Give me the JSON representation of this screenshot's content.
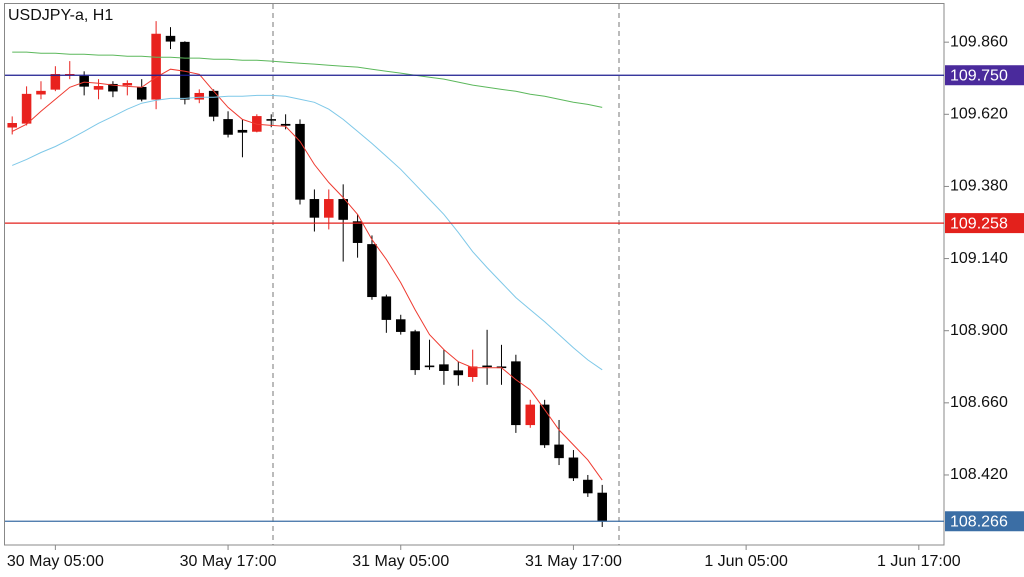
{
  "chart_data": {
    "type": "candlestick",
    "title": "USDJPY-a, H1",
    "x": [
      "30 May 02:00",
      "30 May 03:00",
      "30 May 04:00",
      "30 May 05:00",
      "30 May 06:00",
      "30 May 07:00",
      "30 May 08:00",
      "30 May 09:00",
      "30 May 10:00",
      "30 May 11:00",
      "30 May 12:00",
      "30 May 13:00",
      "30 May 14:00",
      "30 May 15:00",
      "30 May 16:00",
      "30 May 17:00",
      "30 May 18:00",
      "30 May 19:00",
      "30 May 20:00",
      "30 May 21:00",
      "30 May 22:00",
      "30 May 23:00",
      "31 May 00:00",
      "31 May 01:00",
      "31 May 02:00",
      "31 May 03:00",
      "31 May 04:00",
      "31 May 05:00",
      "31 May 06:00",
      "31 May 07:00",
      "31 May 08:00",
      "31 May 09:00",
      "31 May 10:00",
      "31 May 11:00",
      "31 May 12:00",
      "31 May 13:00",
      "31 May 14:00",
      "31 May 15:00",
      "31 May 16:00",
      "31 May 17:00",
      "31 May 18:00",
      "31 May 19:00"
    ],
    "open": [
      109.577,
      109.59,
      109.687,
      109.703,
      109.75,
      109.747,
      109.703,
      109.72,
      109.717,
      109.71,
      109.67,
      109.88,
      109.86,
      109.67,
      109.697,
      109.603,
      109.567,
      109.563,
      109.603,
      109.587,
      109.587,
      109.337,
      109.277,
      109.337,
      109.263,
      109.187,
      109.013,
      108.937,
      108.897,
      108.783,
      108.787,
      108.767,
      108.747,
      108.783,
      108.78,
      108.797,
      108.587,
      108.653,
      108.52,
      108.477,
      108.403,
      108.36
    ],
    "high": [
      109.613,
      109.713,
      109.73,
      109.78,
      109.797,
      109.763,
      109.737,
      109.73,
      109.733,
      109.737,
      109.93,
      109.91,
      109.863,
      109.703,
      109.703,
      109.63,
      109.603,
      109.62,
      109.62,
      109.62,
      109.603,
      109.37,
      109.37,
      109.387,
      109.287,
      109.217,
      109.02,
      108.953,
      108.903,
      108.87,
      108.837,
      108.797,
      108.837,
      108.903,
      108.853,
      108.82,
      108.67,
      108.67,
      108.603,
      108.503,
      108.42,
      108.387
    ],
    "low": [
      109.553,
      109.583,
      109.67,
      109.697,
      109.737,
      109.683,
      109.67,
      109.677,
      109.683,
      109.663,
      109.637,
      109.837,
      109.653,
      109.657,
      109.597,
      109.543,
      109.477,
      109.56,
      109.577,
      109.57,
      109.32,
      109.23,
      109.237,
      109.13,
      109.143,
      109.003,
      108.893,
      108.887,
      108.753,
      108.77,
      108.72,
      108.717,
      108.73,
      108.72,
      108.72,
      108.56,
      108.577,
      108.51,
      108.453,
      108.4,
      108.347,
      108.247
    ],
    "close": [
      109.59,
      109.687,
      109.697,
      109.753,
      109.753,
      109.713,
      109.713,
      109.697,
      109.723,
      109.67,
      109.887,
      109.863,
      109.67,
      109.69,
      109.613,
      109.553,
      109.56,
      109.613,
      109.6,
      109.583,
      109.337,
      109.277,
      109.337,
      109.27,
      109.193,
      109.013,
      108.937,
      108.897,
      108.77,
      108.78,
      108.767,
      108.753,
      108.78,
      108.78,
      108.777,
      108.587,
      108.653,
      108.52,
      108.477,
      108.41,
      108.36,
      108.266
    ],
    "up_color": "#e8221e",
    "down_color": "#000000",
    "overlays": [
      {
        "color": "#ee3a30",
        "values": [
          109.563,
          109.587,
          109.63,
          109.67,
          109.71,
          109.727,
          109.723,
          109.717,
          109.713,
          109.71,
          109.743,
          109.77,
          109.763,
          109.753,
          109.697,
          109.643,
          109.603,
          109.587,
          109.583,
          109.58,
          109.53,
          109.453,
          109.393,
          109.343,
          109.287,
          109.203,
          109.137,
          109.06,
          108.97,
          108.887,
          108.837,
          108.797,
          108.777,
          108.777,
          108.777,
          108.737,
          108.703,
          108.637,
          108.57,
          108.52,
          108.47,
          108.403
        ]
      },
      {
        "color": "#7ec8e8",
        "values": [
          109.45,
          109.47,
          109.493,
          109.513,
          109.537,
          109.563,
          109.59,
          109.613,
          109.637,
          109.657,
          109.667,
          109.673,
          109.673,
          109.677,
          109.677,
          109.68,
          109.68,
          109.683,
          109.683,
          109.68,
          109.67,
          109.66,
          109.637,
          109.603,
          109.563,
          109.523,
          109.48,
          109.437,
          109.387,
          109.337,
          109.287,
          109.227,
          109.163,
          109.11,
          109.06,
          109.01,
          108.97,
          108.93,
          108.887,
          108.843,
          108.803,
          108.77
        ]
      },
      {
        "color": "#5cb85c",
        "values": [
          109.827,
          109.827,
          109.823,
          109.823,
          109.82,
          109.82,
          109.817,
          109.817,
          109.813,
          109.813,
          109.81,
          109.81,
          109.807,
          109.807,
          109.803,
          109.803,
          109.8,
          109.8,
          109.797,
          109.793,
          109.79,
          109.787,
          109.783,
          109.78,
          109.777,
          109.77,
          109.763,
          109.757,
          109.75,
          109.743,
          109.737,
          109.727,
          109.717,
          109.71,
          109.703,
          109.697,
          109.687,
          109.68,
          109.67,
          109.66,
          109.653,
          109.643
        ]
      }
    ],
    "levels": [
      {
        "value": 109.75,
        "label": "109.750",
        "color": "#1c1c8f",
        "label_color": "#4a2a9c"
      },
      {
        "value": 109.258,
        "label": "109.258",
        "color": "#e3211c",
        "label_color": "#e3211c"
      },
      {
        "value": 108.266,
        "label": "108.266",
        "color": "#3b6ea5",
        "label_color": "#3b6ea5"
      }
    ],
    "ylim": [
      108.187,
      109.987
    ],
    "yticks": [
      {
        "value": 109.86,
        "label": "109.860"
      },
      {
        "value": 109.62,
        "label": "109.620"
      },
      {
        "value": 109.38,
        "label": "109.380"
      },
      {
        "value": 109.14,
        "label": "109.140"
      },
      {
        "value": 108.9,
        "label": "108.900"
      },
      {
        "value": 108.66,
        "label": "108.660"
      },
      {
        "value": 108.42,
        "label": "108.420"
      }
    ],
    "xlim": [
      "30 May 01:30",
      "1 Jun 18:45"
    ],
    "xticks": [
      "30 May 05:00",
      "30 May 17:00",
      "31 May 05:00",
      "31 May 17:00",
      "1 Jun 05:00",
      "1 Jun 17:00"
    ]
  }
}
